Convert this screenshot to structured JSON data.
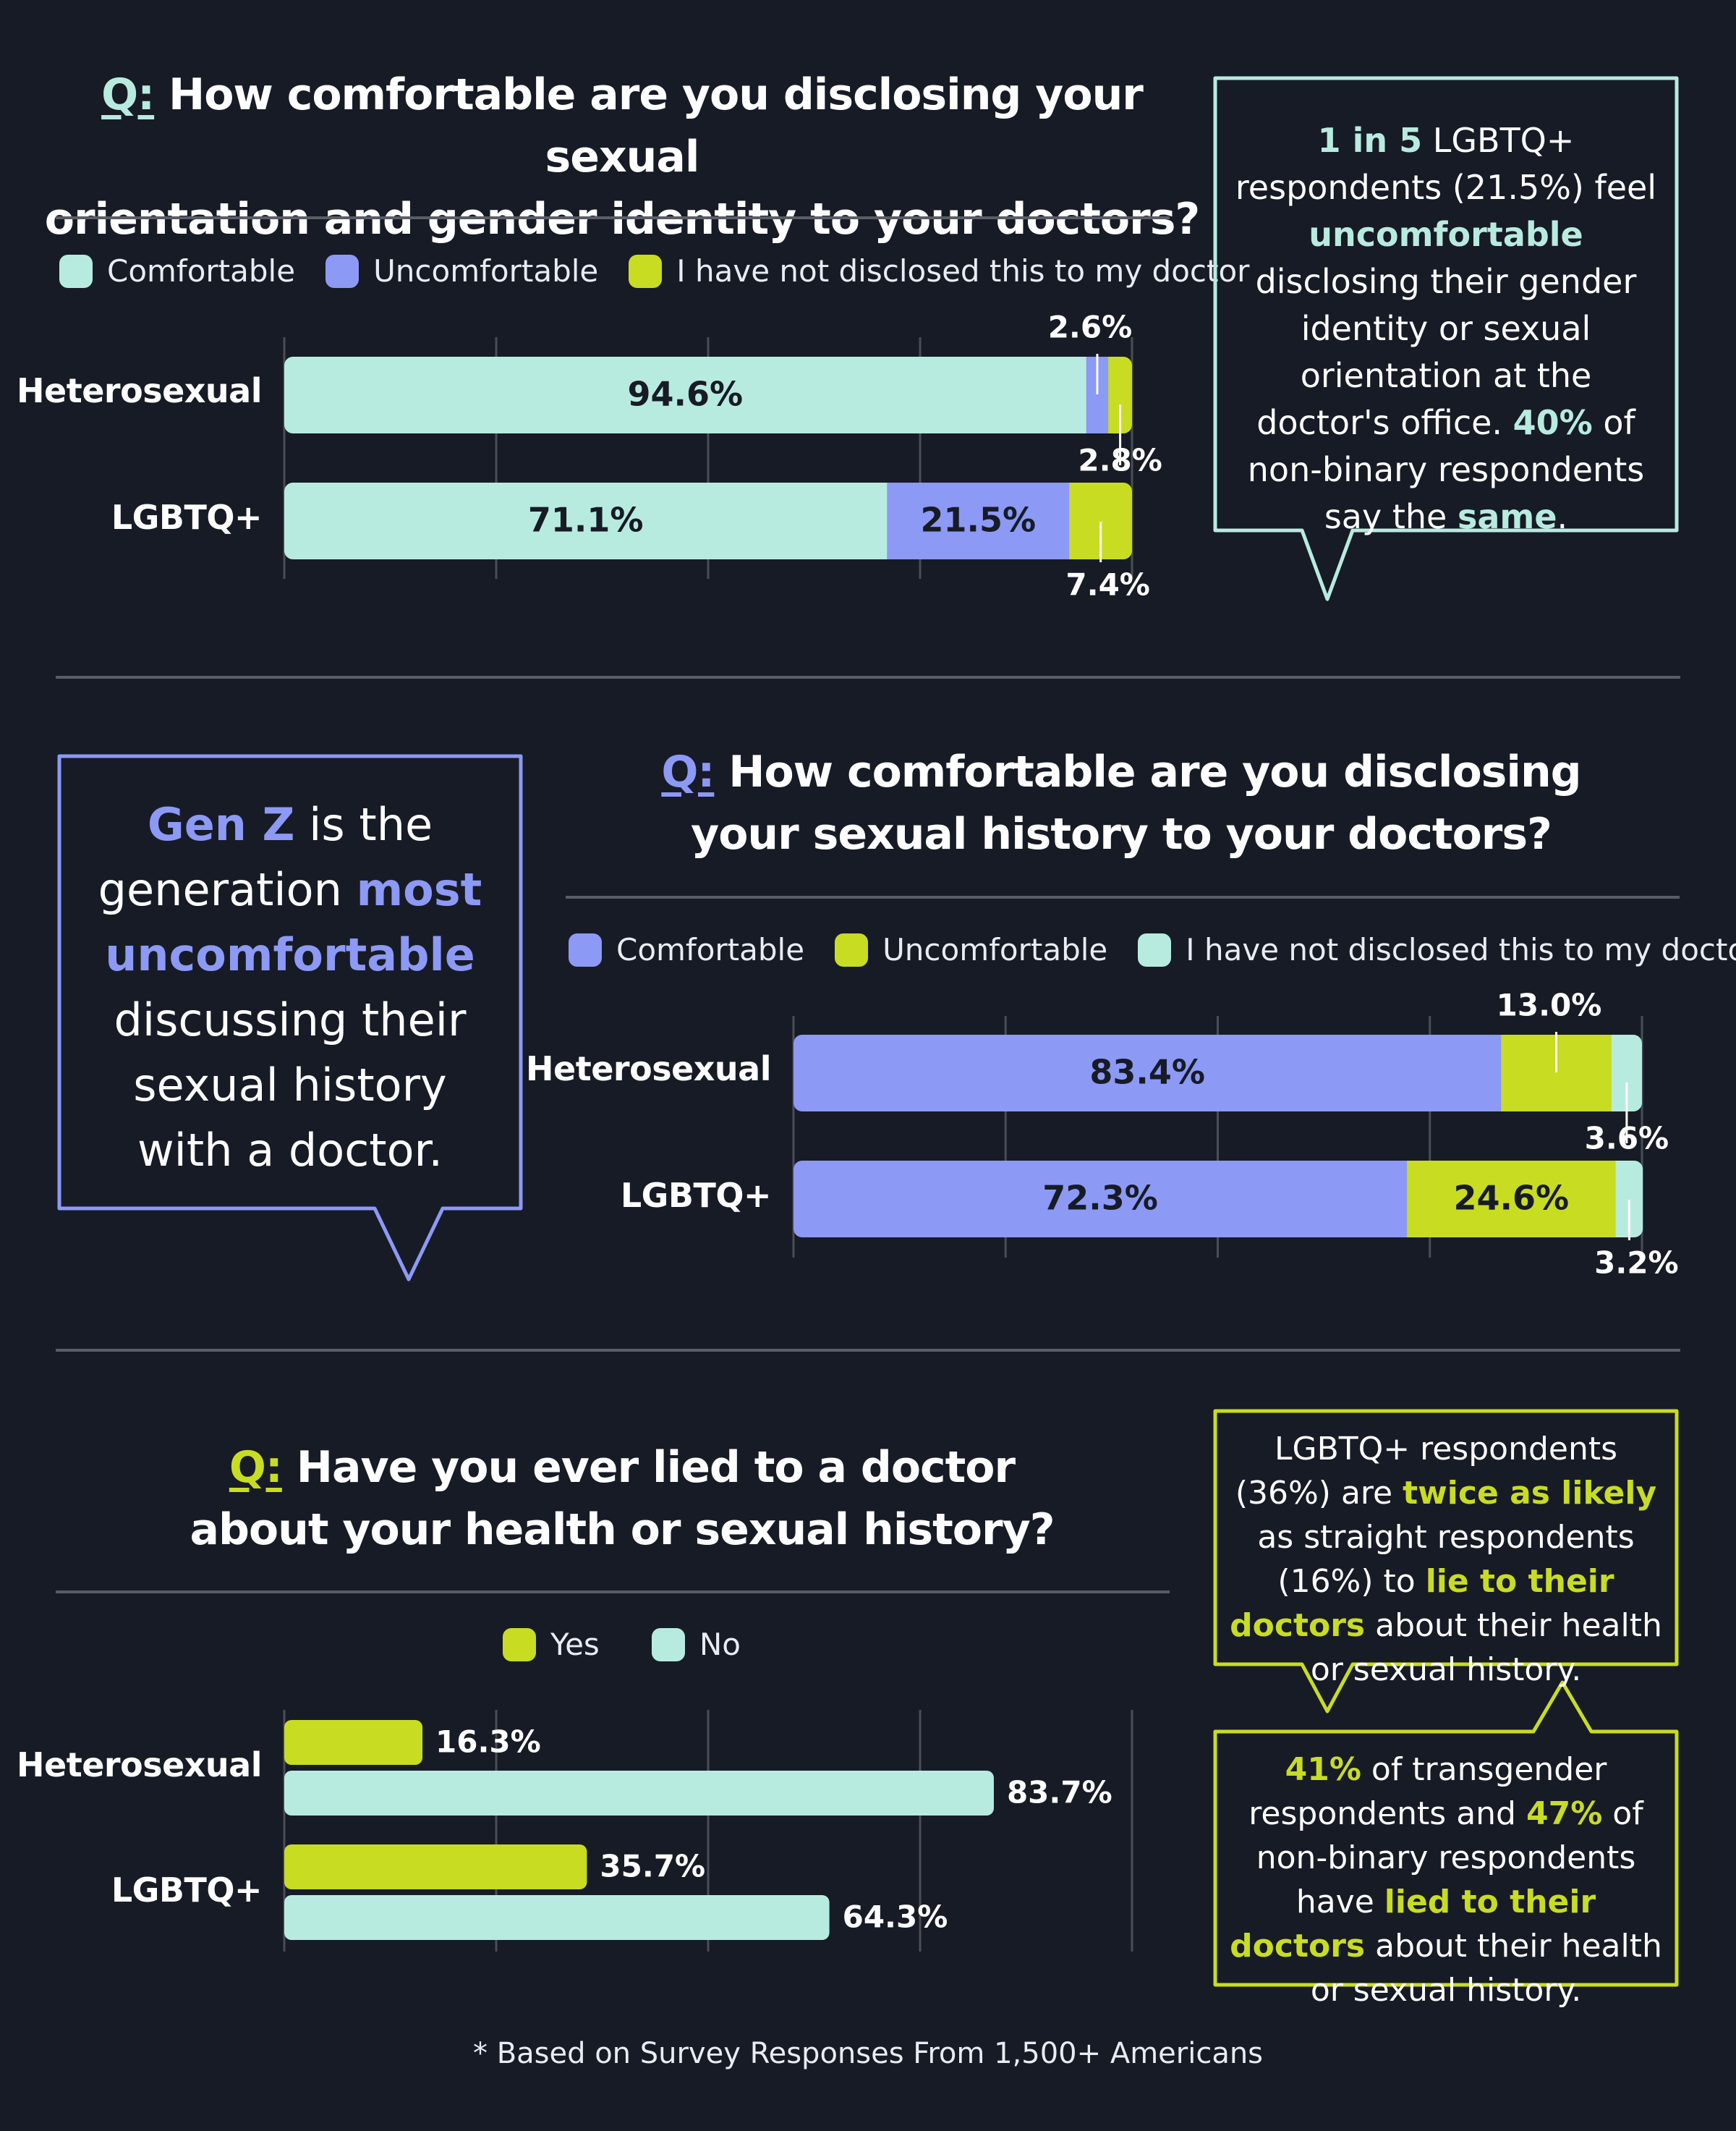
{
  "colors": {
    "background": "#171b26",
    "mint": "#b8ebdf",
    "periwinkle": "#8c99f5",
    "lime": "#c8dc22",
    "rule": "#5a5d66",
    "grid": "#4a4d56"
  },
  "section1": {
    "q": "Q:",
    "title_line1": "How comfortable are you disclosing your sexual",
    "title_line2": "orientation and gender identity to your doctors?",
    "legend": [
      "Comfortable",
      "Uncomfortable",
      "I have not disclosed this to my doctor"
    ],
    "callout": {
      "p1": "1 in 5",
      "p2": " LGBTQ+ respondents (21.5%) feel ",
      "p3": "uncomfortable",
      "p4": " disclosing their gender identity or sexual orientation at the doctor's office. ",
      "p5": "40%",
      "p6": " of non-binary respondents say the ",
      "p7": "same",
      "p8": "."
    }
  },
  "section2": {
    "q": "Q:",
    "title_line1": "How comfortable are you disclosing",
    "title_line2": "your sexual history to your doctors?",
    "legend": [
      "Comfortable",
      "Uncomfortable",
      "I have not disclosed this to my doctor"
    ],
    "callout": {
      "p1": "Gen Z",
      "p2": " is the generation ",
      "p3": "most uncomfortable",
      "p4": " discussing their sexual history with a doctor."
    }
  },
  "section3": {
    "q": "Q:",
    "title_line1": "Have you ever lied to a doctor",
    "title_line2": "about your health or sexual history?",
    "legend": [
      "Yes",
      "No"
    ],
    "callout_top": {
      "p1": "LGBTQ+ respondents (36%) are ",
      "p2": "twice as likely",
      "p3": " as straight respondents (16%) to ",
      "p4": "lie to their doctors",
      "p5": " about their health or sexual history."
    },
    "callout_bottom": {
      "p1": "41%",
      "p2": " of transgender respondents and ",
      "p3": "47%",
      "p4": " of non-binary respondents have ",
      "p5": "lied to their doctors",
      "p6": " about their health or sexual history."
    }
  },
  "footnote": "* Based on Survey Responses From 1,500+ Americans",
  "chart_data": [
    {
      "type": "bar",
      "orientation": "horizontal",
      "stacked": true,
      "title": "How comfortable are you disclosing your sexual orientation and gender identity to your doctors?",
      "categories": [
        "Heterosexual",
        "LGBTQ+"
      ],
      "series": [
        {
          "name": "Comfortable",
          "values": [
            94.6,
            71.1
          ],
          "labels": [
            "94.6%",
            "71.1%"
          ]
        },
        {
          "name": "Uncomfortable",
          "values": [
            2.6,
            21.5
          ],
          "labels": [
            "2.6%",
            "21.5%"
          ]
        },
        {
          "name": "I have not disclosed this to my doctor",
          "values": [
            2.8,
            7.4
          ],
          "labels": [
            "2.8%",
            "7.4%"
          ]
        }
      ],
      "xlim": [
        0,
        100
      ],
      "grid": true,
      "legend": "top"
    },
    {
      "type": "bar",
      "orientation": "horizontal",
      "stacked": true,
      "title": "How comfortable are you disclosing your sexual history to your doctors?",
      "categories": [
        "Heterosexual",
        "LGBTQ+"
      ],
      "series": [
        {
          "name": "Comfortable",
          "values": [
            83.4,
            72.3
          ],
          "labels": [
            "83.4%",
            "72.3%"
          ]
        },
        {
          "name": "Uncomfortable",
          "values": [
            13.0,
            24.6
          ],
          "labels": [
            "13.0%",
            "24.6%"
          ]
        },
        {
          "name": "I have not disclosed this to my doctor",
          "values": [
            3.6,
            3.2
          ],
          "labels": [
            "3.6%",
            "3.2%"
          ]
        }
      ],
      "xlim": [
        0,
        100
      ],
      "grid": true,
      "legend": "top"
    },
    {
      "type": "bar",
      "orientation": "horizontal",
      "stacked": false,
      "title": "Have you ever lied to a doctor about your health or sexual history?",
      "categories": [
        "Heterosexual",
        "LGBTQ+"
      ],
      "series": [
        {
          "name": "Yes",
          "values": [
            16.3,
            35.7
          ],
          "labels": [
            "16.3%",
            "35.7%"
          ]
        },
        {
          "name": "No",
          "values": [
            83.7,
            64.3
          ],
          "labels": [
            "83.7%",
            "64.3%"
          ]
        }
      ],
      "xlim": [
        0,
        100
      ],
      "grid": true,
      "legend": "top"
    }
  ]
}
